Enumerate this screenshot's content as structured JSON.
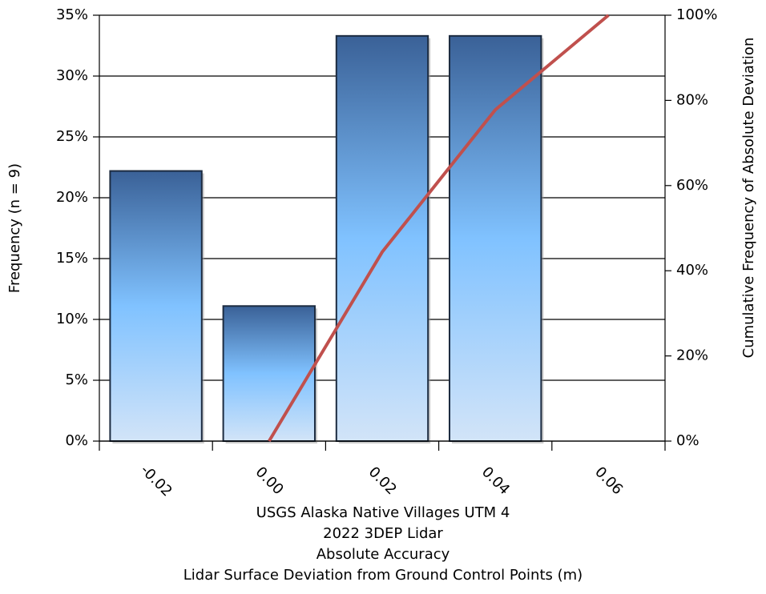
{
  "chart_data": {
    "type": "bar",
    "caption": [
      "USGS Alaska Native Villages UTM 4",
      "2022 3DEP Lidar",
      "Absolute Accuracy",
      "Lidar Surface Deviation from Ground Control Points (m)"
    ],
    "ylabel": "Frequency (n = 9)",
    "y2label": "Cumulative Frequency of Absolute Deviation",
    "categories": [
      "-0.02",
      "0.00",
      "0.02",
      "0.04",
      "0.06"
    ],
    "series": [
      {
        "name": "Frequency",
        "type": "bar",
        "color": "#3b6496",
        "values": [
          22.2,
          11.1,
          33.3,
          33.3,
          0
        ]
      },
      {
        "name": "Cumulative Frequency",
        "type": "line",
        "axis": "y2",
        "color": "#c0504d",
        "values": [
          null,
          0,
          44.4,
          77.8,
          100
        ]
      }
    ],
    "ylim": [
      0,
      35
    ],
    "yticks": [
      {
        "value": 0,
        "label": "0%"
      },
      {
        "value": 5,
        "label": "5%"
      },
      {
        "value": 10,
        "label": "10%"
      },
      {
        "value": 15,
        "label": "15%"
      },
      {
        "value": 20,
        "label": "20%"
      },
      {
        "value": 25,
        "label": "25%"
      },
      {
        "value": 30,
        "label": "30%"
      },
      {
        "value": 35,
        "label": "35%"
      }
    ],
    "y2lim": [
      0,
      100
    ],
    "y2ticks": [
      {
        "value": 0,
        "label": "0%"
      },
      {
        "value": 20,
        "label": "20%"
      },
      {
        "value": 40,
        "label": "40%"
      },
      {
        "value": 60,
        "label": "60%"
      },
      {
        "value": 80,
        "label": "80%"
      },
      {
        "value": 100,
        "label": "100%"
      }
    ],
    "grid": true
  }
}
